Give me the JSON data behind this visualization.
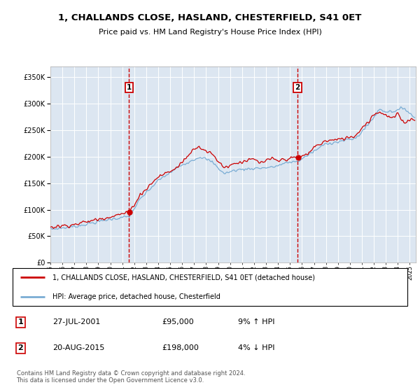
{
  "title": "1, CHALLANDS CLOSE, HASLAND, CHESTERFIELD, S41 0ET",
  "subtitle": "Price paid vs. HM Land Registry's House Price Index (HPI)",
  "legend_line1": "1, CHALLANDS CLOSE, HASLAND, CHESTERFIELD, S41 0ET (detached house)",
  "legend_line2": "HPI: Average price, detached house, Chesterfield",
  "transaction1_date": "27-JUL-2001",
  "transaction1_price": "£95,000",
  "transaction1_hpi": "9% ↑ HPI",
  "transaction1_year": 2001.57,
  "transaction1_value": 95000,
  "transaction2_date": "20-AUG-2015",
  "transaction2_price": "£198,000",
  "transaction2_hpi": "4% ↓ HPI",
  "transaction2_year": 2015.63,
  "transaction2_value": 198000,
  "footer": "Contains HM Land Registry data © Crown copyright and database right 2024.\nThis data is licensed under the Open Government Licence v3.0.",
  "ylim": [
    0,
    370000
  ],
  "xlim_start": 1995.0,
  "xlim_end": 2025.5,
  "background_color": "#dce6f1",
  "red_line_color": "#cc0000",
  "blue_line_color": "#7aadd4",
  "grid_color": "#ffffff",
  "yticks": [
    0,
    50000,
    100000,
    150000,
    200000,
    250000,
    300000,
    350000
  ],
  "ytick_labels": [
    "£0",
    "£50K",
    "£100K",
    "£150K",
    "£200K",
    "£250K",
    "£300K",
    "£350K"
  ]
}
